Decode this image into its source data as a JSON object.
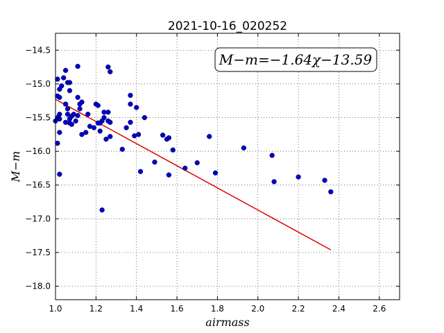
{
  "chart_data": {
    "type": "scatter",
    "title": "2021-10-16_020252",
    "xlabel": "airmass",
    "ylabel": "M−m",
    "xlim": [
      1.0,
      2.7
    ],
    "ylim": [
      -18.2,
      -14.25
    ],
    "y_inverted": true,
    "grid": true,
    "x_ticks": [
      1.0,
      1.2,
      1.4,
      1.6,
      1.8,
      2.0,
      2.2,
      2.4,
      2.6
    ],
    "x_tick_labels": [
      "1.0",
      "1.2",
      "1.4",
      "1.6",
      "1.8",
      "2.0",
      "2.2",
      "2.4",
      "2.6"
    ],
    "y_ticks": [
      -14.5,
      -15.0,
      -15.5,
      -16.0,
      -16.5,
      -17.0,
      -17.5,
      -18.0
    ],
    "y_tick_labels": [
      "−14.5",
      "−15.0",
      "−15.5",
      "−16.0",
      "−16.5",
      "−17.0",
      "−17.5",
      "−18.0"
    ],
    "annotation": "M−m=−1.64χ−13.59",
    "point_color": "#0000cc",
    "line_color": "#dd0000",
    "fit": {
      "slope": -1.64,
      "intercept": -13.59,
      "x_range": [
        1.0,
        2.36
      ]
    },
    "points": [
      [
        1.01,
        -14.93
      ],
      [
        1.01,
        -15.18
      ],
      [
        1.02,
        -15.2
      ],
      [
        1.02,
        -15.45
      ],
      [
        1.0,
        -15.55
      ],
      [
        1.01,
        -15.5
      ],
      [
        1.02,
        -15.52
      ],
      [
        1.02,
        -15.72
      ],
      [
        1.01,
        -15.88
      ],
      [
        1.02,
        -16.34
      ],
      [
        1.03,
        -15.03
      ],
      [
        1.02,
        -15.08
      ],
      [
        1.04,
        -14.91
      ],
      [
        1.05,
        -14.8
      ],
      [
        1.06,
        -14.98
      ],
      [
        1.07,
        -14.98
      ],
      [
        1.07,
        -15.1
      ],
      [
        1.05,
        -15.3
      ],
      [
        1.06,
        -15.37
      ],
      [
        1.06,
        -15.45
      ],
      [
        1.05,
        -15.57
      ],
      [
        1.07,
        -15.52
      ],
      [
        1.07,
        -15.58
      ],
      [
        1.08,
        -15.48
      ],
      [
        1.08,
        -15.6
      ],
      [
        1.09,
        -15.45
      ],
      [
        1.1,
        -15.55
      ],
      [
        1.11,
        -15.2
      ],
      [
        1.11,
        -15.47
      ],
      [
        1.12,
        -15.3
      ],
      [
        1.12,
        -15.37
      ],
      [
        1.13,
        -15.27
      ],
      [
        1.11,
        -14.74
      ],
      [
        1.13,
        -15.75
      ],
      [
        1.15,
        -15.72
      ],
      [
        1.16,
        -15.45
      ],
      [
        1.17,
        -15.63
      ],
      [
        1.19,
        -15.65
      ],
      [
        1.2,
        -15.3
      ],
      [
        1.21,
        -15.32
      ],
      [
        1.21,
        -15.58
      ],
      [
        1.22,
        -15.7
      ],
      [
        1.22,
        -15.58
      ],
      [
        1.23,
        -15.55
      ],
      [
        1.24,
        -15.5
      ],
      [
        1.24,
        -15.42
      ],
      [
        1.25,
        -15.82
      ],
      [
        1.26,
        -15.42
      ],
      [
        1.26,
        -15.55
      ],
      [
        1.27,
        -15.57
      ],
      [
        1.26,
        -14.75
      ],
      [
        1.27,
        -14.82
      ],
      [
        1.27,
        -15.78
      ],
      [
        1.23,
        -16.87
      ],
      [
        1.33,
        -15.97
      ],
      [
        1.35,
        -15.65
      ],
      [
        1.37,
        -15.57
      ],
      [
        1.37,
        -15.17
      ],
      [
        1.37,
        -15.3
      ],
      [
        1.39,
        -15.77
      ],
      [
        1.4,
        -15.35
      ],
      [
        1.41,
        -15.75
      ],
      [
        1.42,
        -16.3
      ],
      [
        1.44,
        -15.5
      ],
      [
        1.49,
        -16.16
      ],
      [
        1.53,
        -15.76
      ],
      [
        1.55,
        -15.82
      ],
      [
        1.56,
        -15.8
      ],
      [
        1.56,
        -16.35
      ],
      [
        1.58,
        -15.98
      ],
      [
        1.64,
        -16.25
      ],
      [
        1.7,
        -16.17
      ],
      [
        1.76,
        -15.78
      ],
      [
        1.79,
        -16.32
      ],
      [
        1.93,
        -15.95
      ],
      [
        2.07,
        -16.06
      ],
      [
        2.08,
        -16.45
      ],
      [
        2.2,
        -16.38
      ],
      [
        2.33,
        -16.43
      ],
      [
        2.36,
        -16.6
      ]
    ]
  }
}
